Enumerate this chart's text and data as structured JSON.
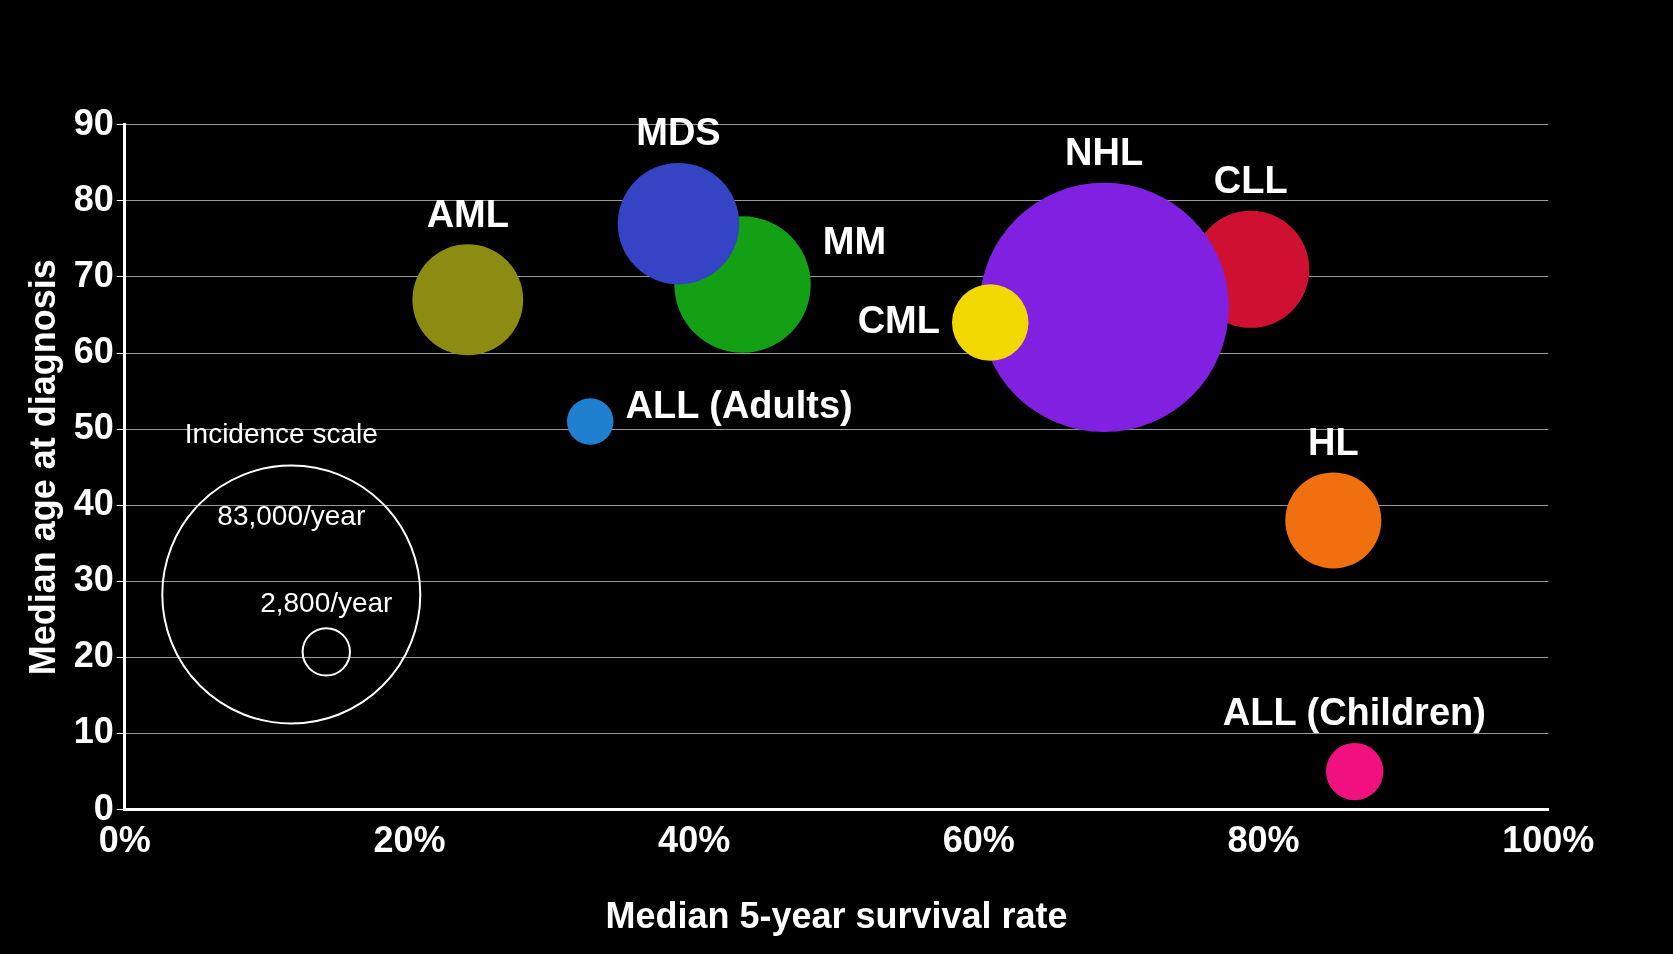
{
  "chart_data": {
    "type": "bubble",
    "xlabel": "Median 5-year survival rate",
    "ylabel": "Median age at diagnosis",
    "legend_title": "Incidence scale",
    "xlim": [
      0,
      100
    ],
    "xticks": [
      {
        "value": 0,
        "label": "0%"
      },
      {
        "value": 20,
        "label": "20%"
      },
      {
        "value": 40,
        "label": "40%"
      },
      {
        "value": 60,
        "label": "60%"
      },
      {
        "value": 80,
        "label": "80%"
      },
      {
        "value": 100,
        "label": "100%"
      }
    ],
    "ylim": [
      0,
      90
    ],
    "yticks": [
      0,
      10,
      20,
      30,
      40,
      50,
      60,
      70,
      80,
      90
    ],
    "grid": "y",
    "legend": false,
    "size_legend": [
      {
        "value": 83000,
        "label": "83,000/year"
      },
      {
        "value": 2800,
        "label": "2,800/year"
      }
    ],
    "series": [
      {
        "name": "AML",
        "color": "#8c8c12",
        "x": [
          24.1
        ],
        "values": [
          67
        ],
        "sizes": [
          15300
        ]
      },
      {
        "name": "MDS",
        "color": "#3444c4",
        "x": [
          38.9
        ],
        "values": [
          77
        ],
        "sizes": [
          18400
        ]
      },
      {
        "name": "MM",
        "color": "#14a014",
        "x": [
          43.4
        ],
        "values": [
          69
        ],
        "sizes": [
          23200
        ]
      },
      {
        "name": "CML",
        "color": "#f0d800",
        "x": [
          60.8
        ],
        "values": [
          64
        ],
        "sizes": [
          7300
        ]
      },
      {
        "name": "NHL",
        "color": "#8020e0",
        "x": [
          68.8
        ],
        "values": [
          66
        ],
        "sizes": [
          77600
        ]
      },
      {
        "name": "CLL",
        "color": "#d01030",
        "x": [
          79.1
        ],
        "values": [
          71
        ],
        "sizes": [
          17100
        ]
      },
      {
        "name": "HL",
        "color": "#f07010",
        "x": [
          84.9
        ],
        "values": [
          38
        ],
        "sizes": [
          11500
        ]
      },
      {
        "name": "ALL (Adults)",
        "color": "#2080d0",
        "x": [
          32.7
        ],
        "values": [
          51
        ],
        "sizes": [
          2700
        ]
      },
      {
        "name": "ALL (Children)",
        "color": "#f01080",
        "x": [
          86.4
        ],
        "values": [
          5
        ],
        "sizes": [
          4100
        ]
      }
    ]
  }
}
